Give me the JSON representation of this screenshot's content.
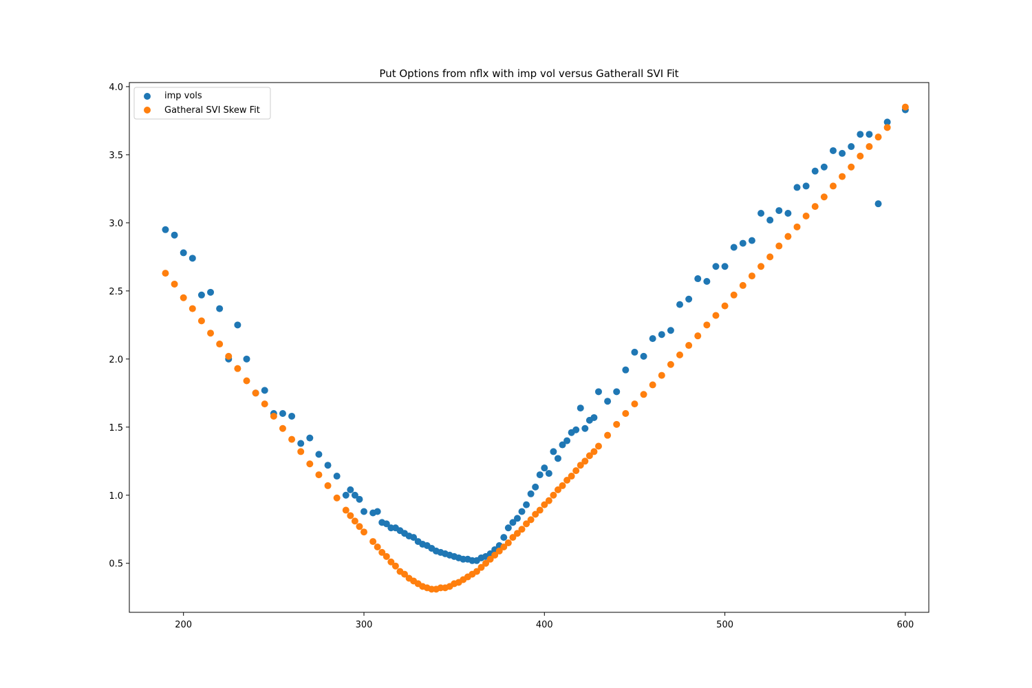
{
  "chart_data": {
    "type": "scatter",
    "title": "Put Options from nflx with imp vol versus Gatherall SVI Fit",
    "xlabel": "",
    "ylabel": "",
    "xlim": [
      170,
      613
    ],
    "ylim": [
      0.14,
      4.03
    ],
    "xticks": [
      200,
      300,
      400,
      500,
      600
    ],
    "yticks": [
      0.5,
      1.0,
      1.5,
      2.0,
      2.5,
      3.0,
      3.5,
      4.0
    ],
    "xtick_labels": [
      "200",
      "300",
      "400",
      "500",
      "600"
    ],
    "ytick_labels": [
      "0.5",
      "1.0",
      "1.5",
      "2.0",
      "2.5",
      "3.0",
      "3.5",
      "4.0"
    ],
    "grid": false,
    "legend_position": "top-left",
    "series": [
      {
        "name": "imp vols",
        "color": "#1f77b4",
        "points": [
          [
            190,
            2.95
          ],
          [
            195,
            2.91
          ],
          [
            200,
            2.78
          ],
          [
            205,
            2.74
          ],
          [
            210,
            2.47
          ],
          [
            215,
            2.49
          ],
          [
            220,
            2.37
          ],
          [
            225,
            2.0
          ],
          [
            230,
            2.25
          ],
          [
            235,
            2.0
          ],
          [
            240,
            1.75
          ],
          [
            245,
            1.77
          ],
          [
            250,
            1.6
          ],
          [
            255,
            1.6
          ],
          [
            260,
            1.58
          ],
          [
            265,
            1.38
          ],
          [
            270,
            1.42
          ],
          [
            275,
            1.3
          ],
          [
            280,
            1.22
          ],
          [
            285,
            1.14
          ],
          [
            290,
            1.0
          ],
          [
            292.5,
            1.04
          ],
          [
            295,
            1.0
          ],
          [
            297.5,
            0.97
          ],
          [
            300,
            0.88
          ],
          [
            305,
            0.87
          ],
          [
            307.5,
            0.88
          ],
          [
            310,
            0.8
          ],
          [
            312.5,
            0.79
          ],
          [
            315,
            0.76
          ],
          [
            317.5,
            0.76
          ],
          [
            320,
            0.74
          ],
          [
            322.5,
            0.72
          ],
          [
            325,
            0.7
          ],
          [
            327.5,
            0.69
          ],
          [
            330,
            0.66
          ],
          [
            332.5,
            0.64
          ],
          [
            335,
            0.63
          ],
          [
            337.5,
            0.61
          ],
          [
            340,
            0.59
          ],
          [
            342.5,
            0.58
          ],
          [
            345,
            0.57
          ],
          [
            347.5,
            0.56
          ],
          [
            350,
            0.55
          ],
          [
            352.5,
            0.54
          ],
          [
            355,
            0.53
          ],
          [
            357.5,
            0.53
          ],
          [
            360,
            0.52
          ],
          [
            362.5,
            0.52
          ],
          [
            365,
            0.54
          ],
          [
            367.5,
            0.55
          ],
          [
            370,
            0.57
          ],
          [
            372.5,
            0.6
          ],
          [
            375,
            0.63
          ],
          [
            377.5,
            0.69
          ],
          [
            380,
            0.76
          ],
          [
            382.5,
            0.8
          ],
          [
            385,
            0.83
          ],
          [
            387.5,
            0.88
          ],
          [
            390,
            0.93
          ],
          [
            392.5,
            1.01
          ],
          [
            395,
            1.06
          ],
          [
            397.5,
            1.15
          ],
          [
            400,
            1.2
          ],
          [
            402.5,
            1.16
          ],
          [
            405,
            1.32
          ],
          [
            407.5,
            1.27
          ],
          [
            410,
            1.37
          ],
          [
            412.5,
            1.4
          ],
          [
            415,
            1.46
          ],
          [
            417.5,
            1.48
          ],
          [
            420,
            1.64
          ],
          [
            422.5,
            1.49
          ],
          [
            425,
            1.55
          ],
          [
            427.5,
            1.57
          ],
          [
            430,
            1.76
          ],
          [
            435,
            1.69
          ],
          [
            440,
            1.76
          ],
          [
            445,
            1.92
          ],
          [
            450,
            2.05
          ],
          [
            455,
            2.02
          ],
          [
            460,
            2.15
          ],
          [
            465,
            2.18
          ],
          [
            470,
            2.21
          ],
          [
            475,
            2.4
          ],
          [
            480,
            2.44
          ],
          [
            485,
            2.59
          ],
          [
            490,
            2.57
          ],
          [
            495,
            2.68
          ],
          [
            500,
            2.68
          ],
          [
            505,
            2.82
          ],
          [
            510,
            2.85
          ],
          [
            515,
            2.87
          ],
          [
            520,
            3.07
          ],
          [
            525,
            3.02
          ],
          [
            530,
            3.09
          ],
          [
            535,
            3.07
          ],
          [
            540,
            3.26
          ],
          [
            545,
            3.27
          ],
          [
            550,
            3.38
          ],
          [
            555,
            3.41
          ],
          [
            560,
            3.53
          ],
          [
            565,
            3.51
          ],
          [
            570,
            3.56
          ],
          [
            575,
            3.65
          ],
          [
            580,
            3.65
          ],
          [
            585,
            3.14
          ],
          [
            590,
            3.74
          ],
          [
            600,
            3.83
          ]
        ]
      },
      {
        "name": "Gatheral SVI Skew Fit",
        "color": "#ff7f0e",
        "points": [
          [
            190,
            2.63
          ],
          [
            195,
            2.55
          ],
          [
            200,
            2.45
          ],
          [
            205,
            2.37
          ],
          [
            210,
            2.28
          ],
          [
            215,
            2.19
          ],
          [
            220,
            2.11
          ],
          [
            225,
            2.02
          ],
          [
            230,
            1.93
          ],
          [
            235,
            1.84
          ],
          [
            240,
            1.75
          ],
          [
            245,
            1.67
          ],
          [
            250,
            1.58
          ],
          [
            255,
            1.49
          ],
          [
            260,
            1.41
          ],
          [
            265,
            1.32
          ],
          [
            270,
            1.23
          ],
          [
            275,
            1.15
          ],
          [
            280,
            1.07
          ],
          [
            285,
            0.98
          ],
          [
            290,
            0.89
          ],
          [
            292.5,
            0.85
          ],
          [
            295,
            0.81
          ],
          [
            297.5,
            0.77
          ],
          [
            300,
            0.73
          ],
          [
            305,
            0.66
          ],
          [
            307.5,
            0.62
          ],
          [
            310,
            0.58
          ],
          [
            312.5,
            0.55
          ],
          [
            315,
            0.51
          ],
          [
            317.5,
            0.48
          ],
          [
            320,
            0.44
          ],
          [
            322.5,
            0.42
          ],
          [
            325,
            0.39
          ],
          [
            327.5,
            0.37
          ],
          [
            330,
            0.35
          ],
          [
            332.5,
            0.33
          ],
          [
            335,
            0.32
          ],
          [
            337.5,
            0.31
          ],
          [
            340,
            0.31
          ],
          [
            342.5,
            0.32
          ],
          [
            345,
            0.32
          ],
          [
            347.5,
            0.33
          ],
          [
            350,
            0.35
          ],
          [
            352.5,
            0.36
          ],
          [
            355,
            0.38
          ],
          [
            357.5,
            0.4
          ],
          [
            360,
            0.42
          ],
          [
            362.5,
            0.44
          ],
          [
            365,
            0.47
          ],
          [
            367.5,
            0.5
          ],
          [
            370,
            0.53
          ],
          [
            372.5,
            0.56
          ],
          [
            375,
            0.59
          ],
          [
            377.5,
            0.62
          ],
          [
            380,
            0.65
          ],
          [
            382.5,
            0.69
          ],
          [
            385,
            0.72
          ],
          [
            387.5,
            0.75
          ],
          [
            390,
            0.79
          ],
          [
            392.5,
            0.82
          ],
          [
            395,
            0.86
          ],
          [
            397.5,
            0.89
          ],
          [
            400,
            0.93
          ],
          [
            402.5,
            0.96
          ],
          [
            405,
            1.0
          ],
          [
            407.5,
            1.04
          ],
          [
            410,
            1.07
          ],
          [
            412.5,
            1.11
          ],
          [
            415,
            1.14
          ],
          [
            417.5,
            1.18
          ],
          [
            420,
            1.22
          ],
          [
            422.5,
            1.25
          ],
          [
            425,
            1.29
          ],
          [
            427.5,
            1.32
          ],
          [
            430,
            1.36
          ],
          [
            435,
            1.44
          ],
          [
            440,
            1.52
          ],
          [
            445,
            1.6
          ],
          [
            450,
            1.67
          ],
          [
            455,
            1.74
          ],
          [
            460,
            1.81
          ],
          [
            465,
            1.88
          ],
          [
            470,
            1.96
          ],
          [
            475,
            2.03
          ],
          [
            480,
            2.1
          ],
          [
            485,
            2.17
          ],
          [
            490,
            2.25
          ],
          [
            495,
            2.32
          ],
          [
            500,
            2.39
          ],
          [
            505,
            2.47
          ],
          [
            510,
            2.54
          ],
          [
            515,
            2.61
          ],
          [
            520,
            2.68
          ],
          [
            525,
            2.75
          ],
          [
            530,
            2.83
          ],
          [
            535,
            2.9
          ],
          [
            540,
            2.97
          ],
          [
            545,
            3.05
          ],
          [
            550,
            3.12
          ],
          [
            555,
            3.19
          ],
          [
            560,
            3.27
          ],
          [
            565,
            3.34
          ],
          [
            570,
            3.41
          ],
          [
            575,
            3.49
          ],
          [
            580,
            3.56
          ],
          [
            585,
            3.63
          ],
          [
            590,
            3.7
          ],
          [
            600,
            3.85
          ]
        ]
      }
    ]
  }
}
